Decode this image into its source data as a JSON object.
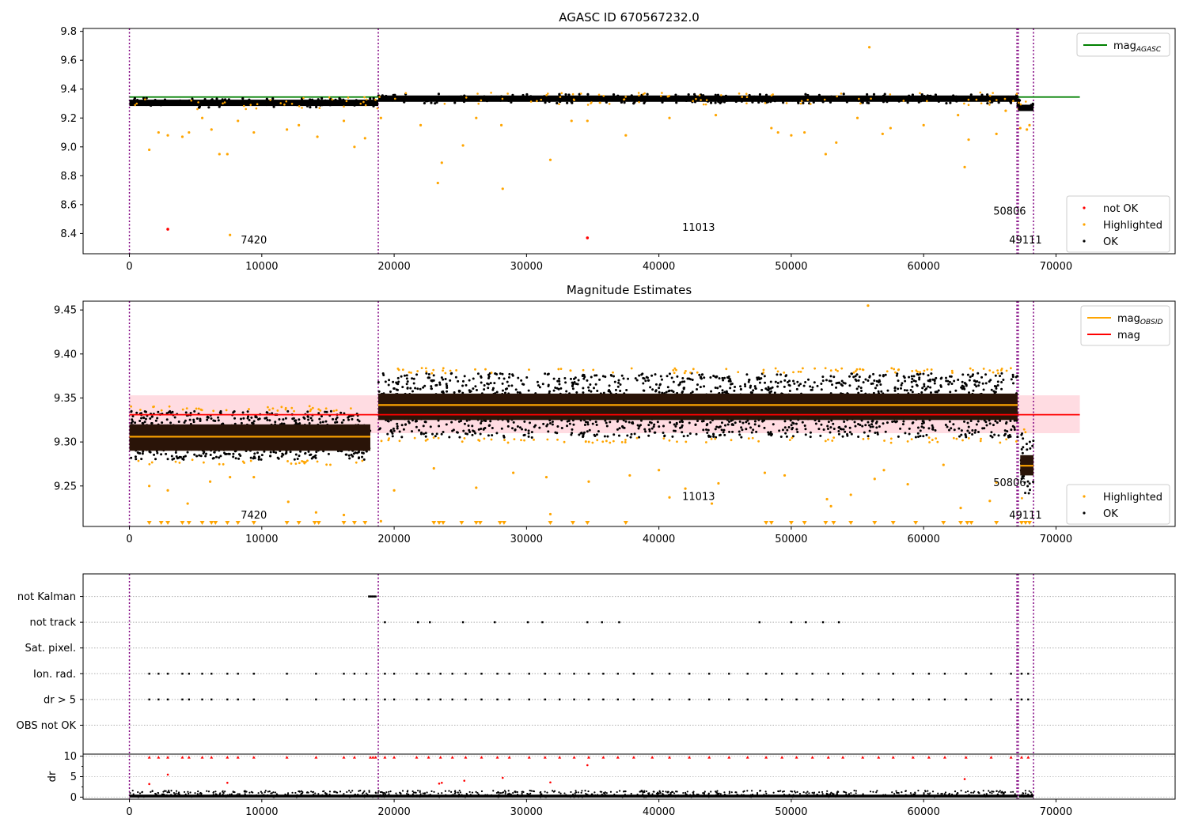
{
  "figure": {
    "panel1_title": "AGASC ID 670567232.0",
    "panel2_title": "Magnitude Estimates"
  },
  "colors": {
    "ok": "#000000",
    "highlighted": "#ffa500",
    "not_ok": "#ff0000",
    "agasc_line": "#008000",
    "mag_line": "#ff0000",
    "obsid_line": "#ffa500",
    "mag_band": "#ffc0cb",
    "obs_boundary": "#800080",
    "band_dark": "#2a1408"
  },
  "chart_data": [
    {
      "type": "scatter",
      "title": "AGASC ID 670567232.0",
      "xlabel": "",
      "ylabel": "",
      "xlim": [
        -3500,
        79000
      ],
      "ylim": [
        8.26,
        9.82
      ],
      "x_ticks": [
        0,
        10000,
        20000,
        30000,
        40000,
        50000,
        60000,
        70000
      ],
      "y_ticks": [
        "8.4",
        "8.6",
        "8.8",
        "9.0",
        "9.2",
        "9.4",
        "9.6",
        "9.8"
      ],
      "legend": {
        "top_right": [
          {
            "label": "mag",
            "subscript": "AGASC",
            "kind": "line",
            "color": "#008000"
          }
        ],
        "bottom_right": [
          {
            "label": "not OK",
            "kind": "dot",
            "color": "#ff0000"
          },
          {
            "label": "Highlighted",
            "kind": "dot",
            "color": "#ffa500"
          },
          {
            "label": "OK",
            "kind": "dot",
            "color": "#000000"
          }
        ]
      },
      "mag_agasc": {
        "value": 9.345,
        "x_range": [
          0,
          71800
        ]
      },
      "observations": [
        {
          "obsid": "7420",
          "x_range": [
            0,
            18800
          ],
          "median": 9.305
        },
        {
          "obsid": "11013",
          "x_range": [
            18800,
            67100
          ],
          "median": 9.334
        },
        {
          "obsid": "50806",
          "x_range": [
            67100,
            67150
          ],
          "median": 9.3
        },
        {
          "obsid": "49111",
          "x_range": [
            67150,
            68300
          ],
          "median": 9.27
        }
      ],
      "obsid_labels": [
        {
          "text": "7420",
          "x": 9400,
          "y": 8.33
        },
        {
          "text": "11013",
          "x": 43000,
          "y": 8.42
        },
        {
          "text": "50806",
          "x": 66500,
          "y": 8.53
        },
        {
          "text": "49111",
          "x": 67700,
          "y": 8.33
        }
      ],
      "not_ok_points": [
        [
          2900,
          8.43
        ],
        [
          34600,
          8.37
        ]
      ],
      "outlier_points": [
        [
          1500,
          8.98
        ],
        [
          2200,
          9.1
        ],
        [
          2900,
          9.08
        ],
        [
          4000,
          9.07
        ],
        [
          4500,
          9.1
        ],
        [
          5500,
          9.2
        ],
        [
          6200,
          9.12
        ],
        [
          6800,
          8.95
        ],
        [
          7400,
          8.95
        ],
        [
          7600,
          8.39
        ],
        [
          8200,
          9.18
        ],
        [
          9400,
          9.1
        ],
        [
          11900,
          9.12
        ],
        [
          12800,
          9.15
        ],
        [
          14200,
          9.07
        ],
        [
          16200,
          9.18
        ],
        [
          17000,
          9.0
        ],
        [
          17800,
          9.06
        ],
        [
          19000,
          9.2
        ],
        [
          22000,
          9.15
        ],
        [
          23300,
          8.75
        ],
        [
          23600,
          8.89
        ],
        [
          25200,
          9.01
        ],
        [
          26200,
          9.2
        ],
        [
          28100,
          9.15
        ],
        [
          28200,
          8.71
        ],
        [
          31800,
          8.91
        ],
        [
          33400,
          9.18
        ],
        [
          34600,
          9.18
        ],
        [
          37500,
          9.08
        ],
        [
          40800,
          9.2
        ],
        [
          44300,
          9.22
        ],
        [
          48500,
          9.13
        ],
        [
          49000,
          9.1
        ],
        [
          50000,
          9.08
        ],
        [
          51000,
          9.1
        ],
        [
          52600,
          8.95
        ],
        [
          53400,
          9.03
        ],
        [
          55000,
          9.2
        ],
        [
          55900,
          9.69
        ],
        [
          56900,
          9.09
        ],
        [
          57500,
          9.13
        ],
        [
          60000,
          9.15
        ],
        [
          62600,
          9.22
        ],
        [
          63100,
          8.86
        ],
        [
          63400,
          9.05
        ],
        [
          65500,
          9.09
        ],
        [
          66200,
          9.25
        ],
        [
          67300,
          9.13
        ],
        [
          67800,
          9.12
        ],
        [
          68000,
          9.15
        ]
      ]
    },
    {
      "type": "scatter",
      "title": "Magnitude Estimates",
      "xlabel": "",
      "ylabel": "",
      "xlim": [
        -3500,
        79000
      ],
      "ylim": [
        9.204,
        9.46
      ],
      "x_ticks": [
        0,
        10000,
        20000,
        30000,
        40000,
        50000,
        60000,
        70000
      ],
      "y_ticks": [
        "9.25",
        "9.30",
        "9.35",
        "9.40",
        "9.45"
      ],
      "legend": {
        "top_right": [
          {
            "label": "mag",
            "subscript": "OBSID",
            "kind": "line",
            "color": "#ffa500"
          },
          {
            "label": "mag",
            "kind": "line",
            "color": "#ff0000"
          }
        ],
        "bottom_right": [
          {
            "label": "Highlighted",
            "kind": "dot",
            "color": "#ffa500"
          },
          {
            "label": "OK",
            "kind": "dot",
            "color": "#000000"
          }
        ]
      },
      "mag": {
        "value": 9.331,
        "band": [
          9.31,
          9.353
        ],
        "x_range": [
          0,
          71800
        ]
      },
      "observations": [
        {
          "obsid": "7420",
          "x_range": [
            0,
            18200
          ],
          "mag_obsid": 9.306,
          "dark_band": [
            9.29,
            9.32
          ],
          "spread": [
            9.28,
            9.335
          ]
        },
        {
          "obsid": "11013",
          "x_range": [
            18800,
            67100
          ],
          "mag_obsid": 9.342,
          "dark_band": [
            9.325,
            9.355
          ],
          "spread": [
            9.305,
            9.378
          ]
        },
        {
          "obsid": "49111",
          "x_range": [
            67300,
            68300
          ],
          "mag_obsid": 9.273,
          "dark_band": [
            9.262,
            9.285
          ],
          "spread": [
            9.24,
            9.31
          ]
        }
      ],
      "obsid_labels": [
        {
          "text": "7420",
          "x": 9400,
          "y": 9.213
        },
        {
          "text": "11013",
          "x": 43000,
          "y": 9.234
        },
        {
          "text": "50806",
          "x": 66500,
          "y": 9.25
        },
        {
          "text": "49111",
          "x": 67700,
          "y": 9.213
        }
      ],
      "outlier_points": [
        [
          1500,
          9.25
        ],
        [
          2900,
          9.245
        ],
        [
          4400,
          9.23
        ],
        [
          6100,
          9.255
        ],
        [
          7600,
          9.26
        ],
        [
          9400,
          9.26
        ],
        [
          12000,
          9.232
        ],
        [
          14100,
          9.22
        ],
        [
          16200,
          9.217
        ],
        [
          19000,
          9.21
        ],
        [
          20000,
          9.245
        ],
        [
          23000,
          9.27
        ],
        [
          26200,
          9.248
        ],
        [
          29000,
          9.265
        ],
        [
          31500,
          9.26
        ],
        [
          31800,
          9.218
        ],
        [
          34700,
          9.255
        ],
        [
          37800,
          9.262
        ],
        [
          40000,
          9.268
        ],
        [
          40800,
          9.237
        ],
        [
          42000,
          9.247
        ],
        [
          44000,
          9.23
        ],
        [
          44500,
          9.253
        ],
        [
          48000,
          9.265
        ],
        [
          49500,
          9.262
        ],
        [
          52700,
          9.235
        ],
        [
          53000,
          9.227
        ],
        [
          54500,
          9.24
        ],
        [
          55800,
          9.455
        ],
        [
          56300,
          9.258
        ],
        [
          57000,
          9.268
        ],
        [
          58800,
          9.252
        ],
        [
          61500,
          9.274
        ],
        [
          62800,
          9.225
        ],
        [
          65000,
          9.233
        ],
        [
          65500,
          9.254
        ]
      ],
      "lower_markers_x": [
        1500,
        2400,
        2900,
        4000,
        4500,
        5500,
        6200,
        6500,
        7400,
        8200,
        9400,
        11900,
        12800,
        14000,
        14300,
        16200,
        17000,
        17800,
        23000,
        23400,
        23700,
        25100,
        26200,
        26500,
        28000,
        28300,
        31800,
        33500,
        34600,
        37500,
        48100,
        48500,
        50000,
        51000,
        52600,
        53200,
        54500,
        56300,
        57700,
        59400,
        61500,
        62800,
        63300,
        63600,
        65500,
        67400,
        67700,
        68000
      ]
    },
    {
      "type": "scatter",
      "title": "",
      "xlabel": "",
      "ylabel": "dr",
      "xlim": [
        -3500,
        79000
      ],
      "flags": [
        "not Kalman",
        "not track",
        "Sat. pixel.",
        "Ion. rad.",
        "dr > 5",
        "OBS not OK"
      ],
      "flag_points": {
        "not Kalman": [
          18100,
          18200,
          18300,
          18400,
          18500,
          18600
        ],
        "not track": [
          19300,
          21800,
          22700,
          25200,
          27600,
          30100,
          31200,
          34600,
          35700,
          37000,
          47600,
          50000,
          51100,
          52400,
          53600
        ],
        "Sat. pixel.": [],
        "Ion. rad.": [
          1500,
          2200,
          2900,
          4000,
          4500,
          5500,
          6200,
          7400,
          8200,
          9400,
          11900,
          14100,
          16200,
          17000,
          17900,
          19300,
          20000,
          21700,
          22600,
          23500,
          24400,
          25400,
          26600,
          27800,
          28700,
          30200,
          31400,
          32500,
          33600,
          34700,
          35800,
          36900,
          38100,
          39500,
          40800,
          42300,
          43800,
          45300,
          46700,
          48100,
          49300,
          50400,
          51600,
          52800,
          53900,
          55400,
          56600,
          57700,
          59200,
          60400,
          61600,
          63200,
          65100,
          66600,
          67400,
          67900
        ],
        "dr > 5": [
          1500,
          2200,
          2900,
          4000,
          4500,
          5500,
          6200,
          7400,
          8200,
          9400,
          11900,
          14100,
          16200,
          17000,
          17900,
          19300,
          20000,
          21700,
          22600,
          23500,
          24400,
          25400,
          26600,
          27800,
          28700,
          30200,
          31400,
          32500,
          33600,
          34700,
          35800,
          36900,
          38100,
          39500,
          40800,
          42300,
          43800,
          45300,
          46700,
          48100,
          49300,
          50400,
          51600,
          52800,
          53900,
          55400,
          56600,
          57700,
          59200,
          60400,
          61600,
          63200,
          65100,
          66600,
          67400,
          67900
        ],
        "OBS not OK": []
      },
      "dr_ylim": [
        -0.5,
        10.5
      ],
      "dr_y_ticks": [
        "0",
        "5",
        "10"
      ],
      "dr_high_points_x": [
        1500,
        2200,
        2900,
        4000,
        4500,
        5500,
        6200,
        7400,
        8200,
        9400,
        11900,
        14100,
        16200,
        17000,
        18200,
        18400,
        18600,
        19300,
        20000,
        21700,
        22600,
        23500,
        24400,
        25400,
        26600,
        27800,
        28700,
        30200,
        31400,
        32500,
        33600,
        34700,
        35800,
        36900,
        38100,
        39500,
        40800,
        42300,
        43800,
        45300,
        46700,
        48100,
        49300,
        50400,
        51600,
        52800,
        53900,
        55400,
        56600,
        57700,
        59200,
        60400,
        61600,
        63200,
        65100,
        66600,
        67400,
        67900
      ],
      "dr_mid_points": [
        [
          1500,
          3.2
        ],
        [
          2900,
          5.5
        ],
        [
          7400,
          3.5
        ],
        [
          23400,
          3.3
        ],
        [
          23600,
          3.5
        ],
        [
          25300,
          4.0
        ],
        [
          28200,
          4.7
        ],
        [
          31800,
          3.6
        ],
        [
          34600,
          7.8
        ],
        [
          63100,
          4.4
        ]
      ]
    }
  ]
}
